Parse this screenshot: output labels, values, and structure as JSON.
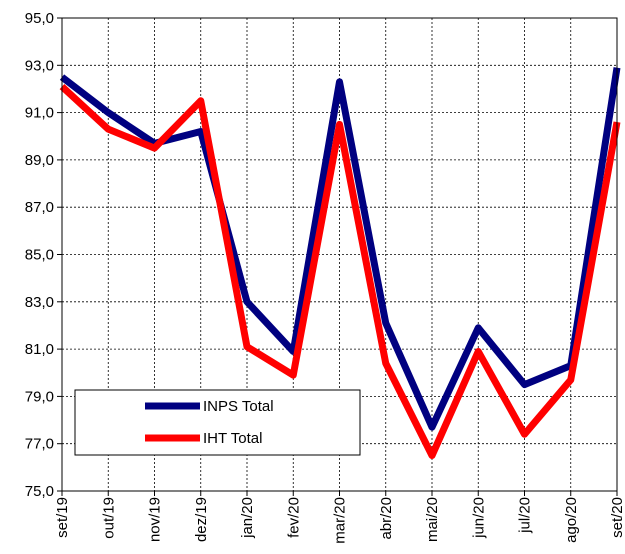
{
  "chart_data": {
    "type": "line",
    "categories": [
      "set/19",
      "out/19",
      "nov/19",
      "dez/19",
      "jan/20",
      "fev/20",
      "mar/20",
      "abr/20",
      "mai/20",
      "jun/20",
      "jul/20",
      "ago/20",
      "set/20"
    ],
    "series": [
      {
        "name": "INPS Total",
        "color": "#000080",
        "values": [
          92.5,
          91.0,
          89.7,
          90.2,
          83.0,
          80.9,
          92.3,
          82.1,
          77.7,
          81.9,
          79.5,
          80.3,
          92.9
        ]
      },
      {
        "name": "IHT Total",
        "color": "#ff0000",
        "values": [
          92.1,
          90.3,
          89.5,
          91.5,
          81.1,
          79.9,
          90.5,
          80.4,
          76.5,
          80.9,
          77.4,
          79.7,
          90.6
        ]
      }
    ],
    "ylim": [
      75,
      95
    ],
    "yticks": [
      {
        "value": 75,
        "label": "75,0"
      },
      {
        "value": 77,
        "label": "77,0"
      },
      {
        "value": 79,
        "label": "79,0"
      },
      {
        "value": 81,
        "label": "81,0"
      },
      {
        "value": 83,
        "label": "83,0"
      },
      {
        "value": 85,
        "label": "85,0"
      },
      {
        "value": 87,
        "label": "87,0"
      },
      {
        "value": 89,
        "label": "89,0"
      },
      {
        "value": 91,
        "label": "91,0"
      },
      {
        "value": 93,
        "label": "93,0"
      },
      {
        "value": 95,
        "label": "95,0"
      }
    ],
    "grid": true
  }
}
